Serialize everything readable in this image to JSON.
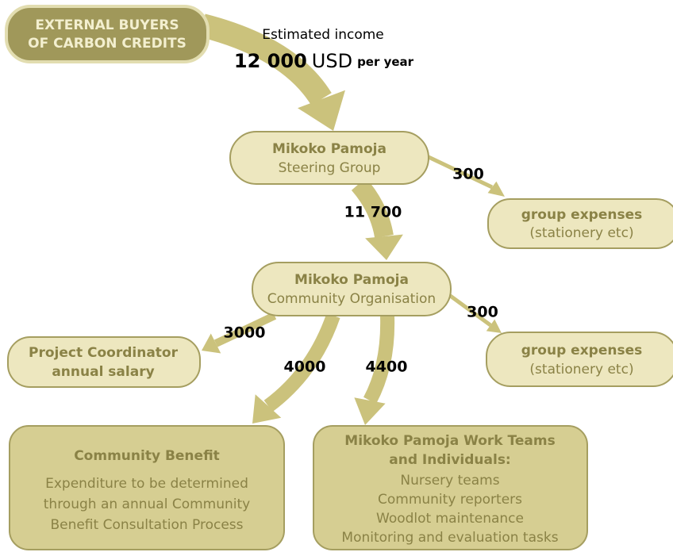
{
  "header": {
    "income_label": "Estimated income",
    "income_value": "12 000",
    "income_unit": "USD",
    "income_period": "per year"
  },
  "nodes": [
    {
      "lines": [
        "EXTERNAL BUYERS",
        "OF CARBON CREDITS"
      ]
    },
    {
      "lines": [
        "Mikoko Pamoja",
        "Steering Group"
      ]
    },
    {
      "lines": [
        "group expenses",
        "(stationery etc)"
      ]
    },
    {
      "lines": [
        "Mikoko Pamoja",
        "Community Organisation"
      ]
    },
    {
      "lines": [
        "Project Coordinator",
        "annual salary"
      ]
    },
    {
      "lines": [
        "group expenses",
        "(stationery etc)"
      ]
    },
    {
      "title": "Community Benefit",
      "lines": [
        "Expenditure to be determined",
        "through an annual Community",
        "Benefit Consultation Process"
      ]
    },
    {
      "title": "Mikoko Pamoja Work Teams",
      "subtitle": "and Individuals:",
      "lines": [
        "Nursery teams",
        "Community reporters",
        "Woodlot maintenance",
        "Monitoring and evaluation tasks"
      ]
    }
  ],
  "flows": [
    {
      "label": "300"
    },
    {
      "label": "11 700"
    },
    {
      "label": "300"
    },
    {
      "label": "3000"
    },
    {
      "label": "4000"
    },
    {
      "label": "4400"
    }
  ]
}
